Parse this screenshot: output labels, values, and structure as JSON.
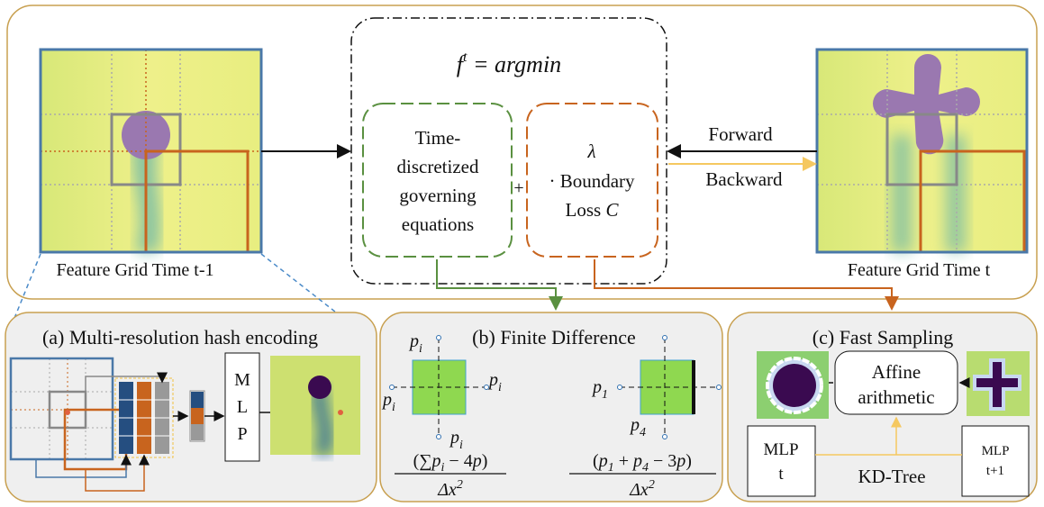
{
  "top": {
    "equation": {
      "base": "f",
      "sup": "t",
      "rest": " = argmin"
    },
    "left_label": "Feature Grid Time t-1",
    "right_label": "Feature Grid Time t",
    "green_box": [
      "Time-",
      "discretized",
      "governing",
      "equations"
    ],
    "plus": "+",
    "orange_box": {
      "lambda": "λ",
      "line2": "· Boundary",
      "line3_a": "Loss ",
      "line3_b": "C"
    },
    "forward": "Forward",
    "backward": "Backward"
  },
  "panel_a": {
    "title": "(a) Multi-resolution hash encoding",
    "mlp": [
      "M",
      "L",
      "P"
    ]
  },
  "panel_b": {
    "title": "(b) Finite Difference",
    "p_i": {
      "base": "p",
      "sub": "i"
    },
    "p_1": {
      "base": "p",
      "sub": "1"
    },
    "p_4": {
      "base": "p",
      "sub": "4"
    },
    "formula_left": {
      "a": "(∑",
      "b": "p",
      "c": "i",
      "d": " − 4",
      "e": "p",
      "f": ")"
    },
    "formula_right": {
      "a": "(",
      "b": "p",
      "c": "1",
      "d": " + ",
      "e": "p",
      "f": "4",
      "g": " − 3",
      "h": "p",
      "i": ")"
    },
    "denominator": {
      "base": "Δx",
      "sup": "2"
    }
  },
  "panel_c": {
    "title": "(c) Fast Sampling",
    "affine": [
      "Affine",
      "arithmetic"
    ],
    "mlp_t": [
      "MLP",
      "t"
    ],
    "mlp_t1": [
      "MLP",
      "t+1"
    ],
    "kdtree": "KD-Tree"
  }
}
